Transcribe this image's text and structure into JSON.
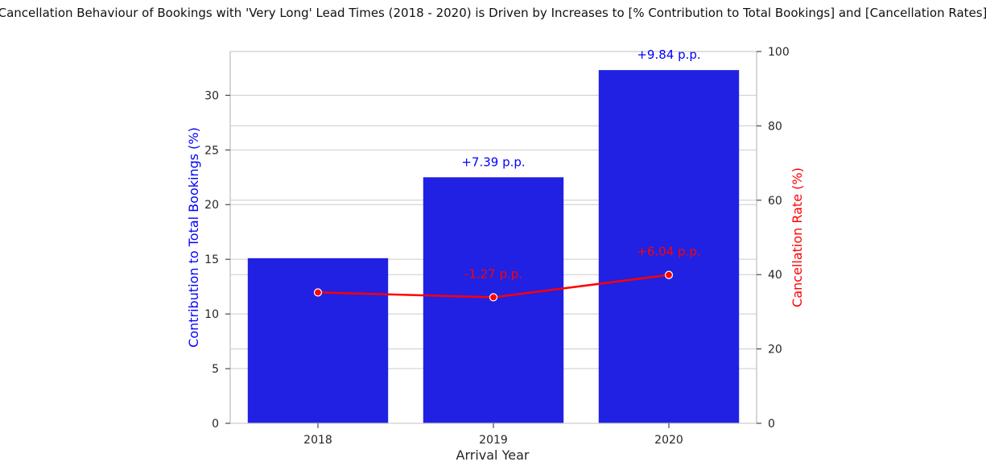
{
  "chart_data": {
    "type": "bar",
    "title": "Cancellation Behaviour of Bookings with 'Very Long' Lead Times (2018 - 2020) is Driven by Increases to [% Contribution to Total Bookings] and [Cancellation Rates]",
    "xlabel": "Arrival Year",
    "categories": [
      "2018",
      "2019",
      "2020"
    ],
    "left_axis": {
      "label": "Contribution to Total Bookings (%)",
      "color": "#0000ff",
      "ylim": [
        0,
        34
      ],
      "ticks": [
        0,
        5,
        10,
        15,
        20,
        25,
        30
      ]
    },
    "right_axis": {
      "label": "Cancellation Rate (%)",
      "color": "#ff0000",
      "ylim": [
        0,
        100
      ],
      "ticks": [
        0,
        20,
        40,
        60,
        80,
        100
      ]
    },
    "series": [
      {
        "name": "Contribution to Total Bookings (%)",
        "chart_type": "bar",
        "axis": "left",
        "color": "#2121e3",
        "values": [
          15.1,
          22.5,
          32.3
        ],
        "annotations": [
          "",
          "+7.39 p.p.",
          "+9.84 p.p."
        ]
      },
      {
        "name": "Cancellation Rate (%)",
        "chart_type": "line",
        "axis": "right",
        "color": "#ff0000",
        "values": [
          35.2,
          33.9,
          39.9
        ],
        "annotations": [
          "",
          "-1.27 p.p.",
          "+6.04 p.p."
        ]
      }
    ],
    "grid": true,
    "legend": "none"
  }
}
